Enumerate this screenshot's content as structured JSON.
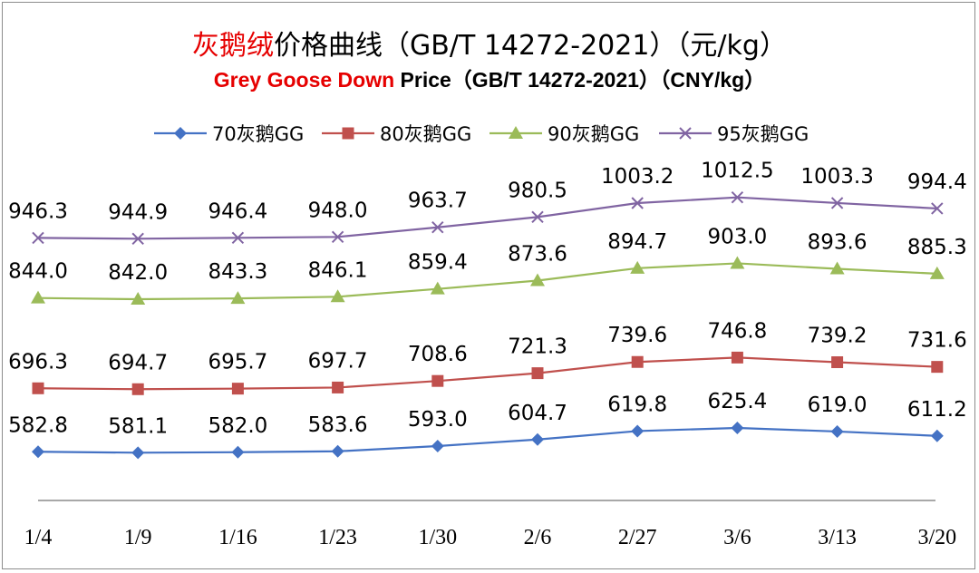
{
  "chart_data": {
    "type": "line",
    "title": {
      "cn_highlight": "灰鹅绒",
      "cn_rest": "价格曲线（GB/T 14272-2021）（元/kg）",
      "en_highlight": "Grey Goose Down",
      "en_rest": " Price（GB/T 14272-2021）（CNY/kg）"
    },
    "categories": [
      "1/4",
      "1/9",
      "1/16",
      "1/23",
      "1/30",
      "2/6",
      "2/27",
      "3/6",
      "3/13",
      "3/20"
    ],
    "series": [
      {
        "name": "70灰鹅GG",
        "color": "#4472c4",
        "marker": "diamond",
        "values": [
          582.8,
          581.1,
          582.0,
          583.6,
          593.0,
          604.7,
          619.8,
          625.4,
          619.0,
          611.2
        ]
      },
      {
        "name": "80灰鹅GG",
        "color": "#c0504d",
        "marker": "square",
        "values": [
          696.3,
          694.7,
          695.7,
          697.7,
          708.6,
          721.3,
          739.6,
          746.8,
          739.2,
          731.6
        ]
      },
      {
        "name": "90灰鹅GG",
        "color": "#9bbb59",
        "marker": "triangle",
        "values": [
          844.0,
          842.0,
          843.3,
          846.1,
          859.4,
          873.6,
          894.7,
          903.0,
          893.6,
          885.3
        ]
      },
      {
        "name": "95灰鹅GG",
        "color": "#8064a2",
        "marker": "x",
        "values": [
          946.3,
          944.9,
          946.4,
          948.0,
          963.7,
          980.5,
          1003.2,
          1012.5,
          1003.3,
          994.4
        ]
      }
    ],
    "data_labels": {
      "70灰鹅GG": [
        "582.8",
        "581.1",
        "582.0",
        "583.6",
        "593.0",
        "604.7",
        "619.8",
        "625.4",
        "619.0",
        "611.2"
      ],
      "80灰鹅GG": [
        "696.3",
        "694.7",
        "695.7",
        "697.7",
        "708.6",
        "721.3",
        "739.6",
        "746.8",
        "739.2",
        "731.6"
      ],
      "90灰鹅GG": [
        "844.0",
        "842.0",
        "843.3",
        "846.1",
        "859.4",
        "873.6",
        "894.7",
        "903.0",
        "893.6",
        "885.3"
      ],
      "95灰鹅GG": [
        "946.3",
        "944.9",
        "946.4",
        "948.0",
        "963.7",
        "980.5",
        "1003.2",
        "1012.5",
        "1003.3",
        "994.4"
      ]
    },
    "legend_position": "top",
    "grid": false,
    "ylim": [
      500,
      1080
    ]
  }
}
